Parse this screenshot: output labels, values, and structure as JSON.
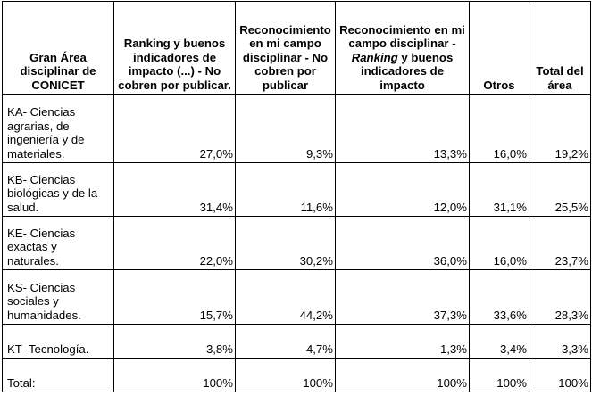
{
  "headers": {
    "area": "Gran Área disciplinar de CONICET",
    "ranking": "Ranking y buenos indicadores de impacto (...) - No cobren por publicar.",
    "reconocimiento": "Reconocimiento en mi campo disciplinar - No cobren por publicar",
    "mixto_pre": "Reconocimiento en mi campo disciplinar - ",
    "mixto_em": "Ranking",
    "mixto_post": " y buenos indicadores de impacto",
    "otros": "Otros",
    "total": "Total del área"
  },
  "rows": [
    {
      "area": "KA- Ciencias agrarias, de ingeniería y de materiales.",
      "ranking": "27,0%",
      "reconocimiento": "9,3%",
      "mixto": "13,3%",
      "otros": "16,0%",
      "total": "19,2%"
    },
    {
      "area": "KB- Ciencias biológicas y de la salud.",
      "ranking": "31,4%",
      "reconocimiento": "11,6%",
      "mixto": "12,0%",
      "otros": "31,1%",
      "total": "25,5%"
    },
    {
      "area": "KE- Ciencias exactas y naturales.",
      "ranking": "22,0%",
      "reconocimiento": "30,2%",
      "mixto": "36,0%",
      "otros": "16,0%",
      "total": "23,7%"
    },
    {
      "area": "KS- Ciencias sociales y humanidades.",
      "ranking": "15,7%",
      "reconocimiento": "44,2%",
      "mixto": "37,3%",
      "otros": "33,6%",
      "total": "28,3%"
    },
    {
      "area": "KT- Tecnología.",
      "ranking": "3,8%",
      "reconocimiento": "4,7%",
      "mixto": "1,3%",
      "otros": "3,4%",
      "total": "3,3%"
    },
    {
      "area": "Total:",
      "ranking": "100%",
      "reconocimiento": "100%",
      "mixto": "100%",
      "otros": "100%",
      "total": "100%"
    }
  ]
}
